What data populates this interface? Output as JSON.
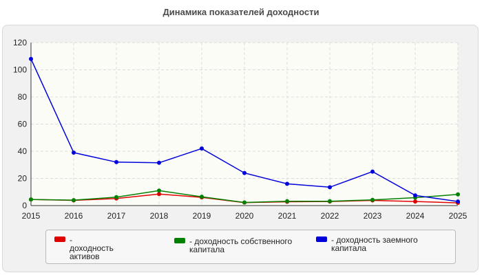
{
  "title": "Динамика показателей доходности",
  "colors": {
    "panel_bg": "#f1f1f1",
    "plot_bg": "#fcfcf6",
    "grid": "#dcdcdc",
    "axis": "#333333"
  },
  "chart_data": {
    "type": "line",
    "title": "Динамика показателей доходности",
    "xlabel": "",
    "ylabel": "",
    "categories": [
      "2015",
      "2016",
      "2017",
      "2018",
      "2019",
      "2020",
      "2021",
      "2022",
      "2023",
      "2024",
      "2025"
    ],
    "ylim": [
      0,
      120
    ],
    "yticks": [
      0,
      20,
      40,
      60,
      80,
      100,
      120
    ],
    "grid": true,
    "legend_position": "bottom",
    "series": [
      {
        "name": "- доходность активов",
        "color": "#e00000",
        "values": [
          4.5,
          3.8,
          5.2,
          8.5,
          6.0,
          2.2,
          2.8,
          3.0,
          3.8,
          3.0,
          2.0
        ]
      },
      {
        "name": "- доходность собственного капитала",
        "color": "#008000",
        "values": [
          4.5,
          4.0,
          6.2,
          11.0,
          6.5,
          2.3,
          3.2,
          3.2,
          4.2,
          5.8,
          8.2
        ]
      },
      {
        "name": "- доходность заемного капитала",
        "color": "#0000dd",
        "values": [
          108.0,
          39.0,
          32.0,
          31.5,
          42.0,
          24.0,
          16.0,
          13.5,
          25.0,
          7.5,
          3.0
        ]
      }
    ]
  }
}
